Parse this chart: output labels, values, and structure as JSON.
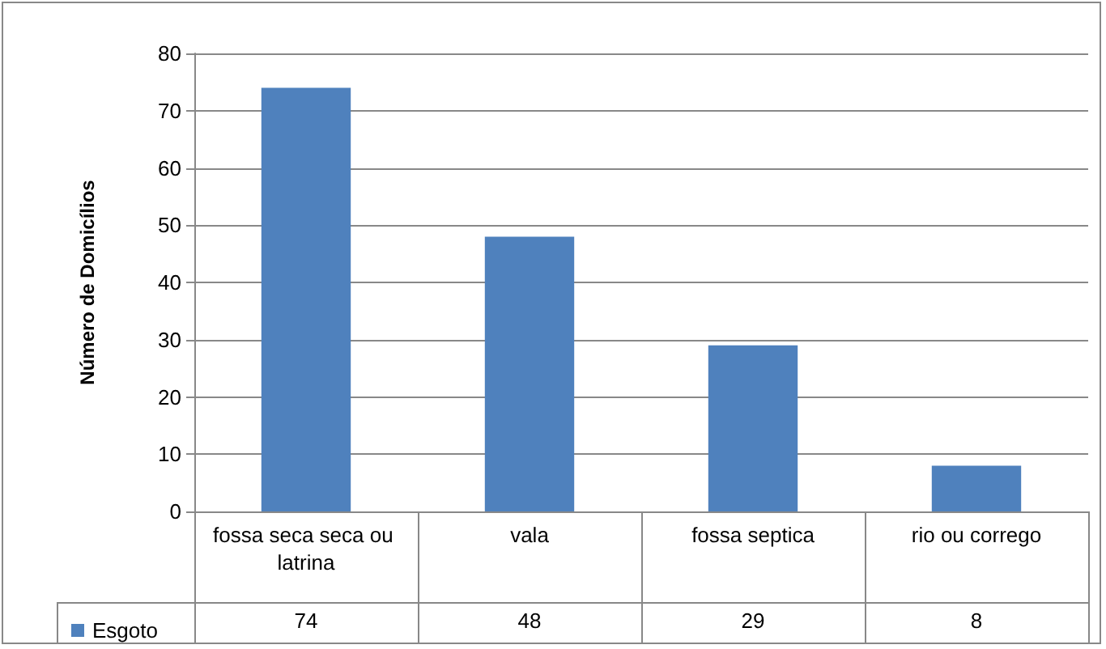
{
  "chart_data": {
    "type": "bar",
    "ylabel": "Número de Domicílios",
    "categories": [
      "fossa seca seca ou latrina",
      "vala",
      "fossa septica",
      "rio ou corrego"
    ],
    "series": [
      {
        "name": "Esgoto",
        "color": "#4f81bd",
        "values": [
          74,
          48,
          29,
          8
        ]
      }
    ],
    "ylim": [
      0,
      80
    ],
    "yticks": [
      0,
      10,
      20,
      30,
      40,
      50,
      60,
      70,
      80
    ],
    "grid": "y",
    "legend": "bottom left",
    "data_labels": true
  }
}
